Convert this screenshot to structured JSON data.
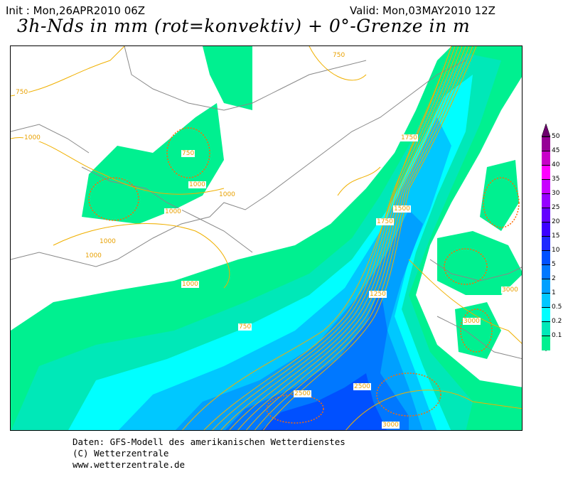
{
  "header": {
    "init": "Init : Mon,26APR2010 06Z",
    "valid": "Valid: Mon,03MAY2010 12Z",
    "title": "3h-Nds in mm (rot=konvektiv) + 0°-Grenze in m"
  },
  "contour_labels": [
    "750",
    "750",
    "1000",
    "1000",
    "1000",
    "1000",
    "1000",
    "1000",
    "1000",
    "750",
    "1750",
    "1500",
    "1750",
    "1250",
    "750",
    "2500",
    "2500",
    "3000",
    "3000",
    "3000"
  ],
  "legend": {
    "ticks": [
      "50",
      "45",
      "40",
      "35",
      "30",
      "25",
      "20",
      "15",
      "10",
      "5",
      "2",
      "1",
      "0.5",
      "0.2",
      "0.1"
    ],
    "colors": [
      "#00f090",
      "#00e8b8",
      "#00ffff",
      "#00c8ff",
      "#00a0ff",
      "#0078ff",
      "#0050ff",
      "#1e28ff",
      "#3c00ff",
      "#6400ff",
      "#9600ff",
      "#c800ff",
      "#ff00ff",
      "#c800c8",
      "#960096",
      "#6e006e"
    ]
  },
  "precip_colors": {
    "light": "#00f090",
    "l2": "#00e8b8",
    "l3": "#00ffff",
    "mid": "#00c8ff",
    "m2": "#00a0ff",
    "heavy": "#0078ff",
    "h2": "#0050ff"
  },
  "contour_color": "#f0b000",
  "footer": {
    "line1": "Daten: GFS-Modell des amerikanischen Wetterdienstes",
    "line2": "(C) Wetterzentrale",
    "line3": "www.wetterzentrale.de"
  }
}
